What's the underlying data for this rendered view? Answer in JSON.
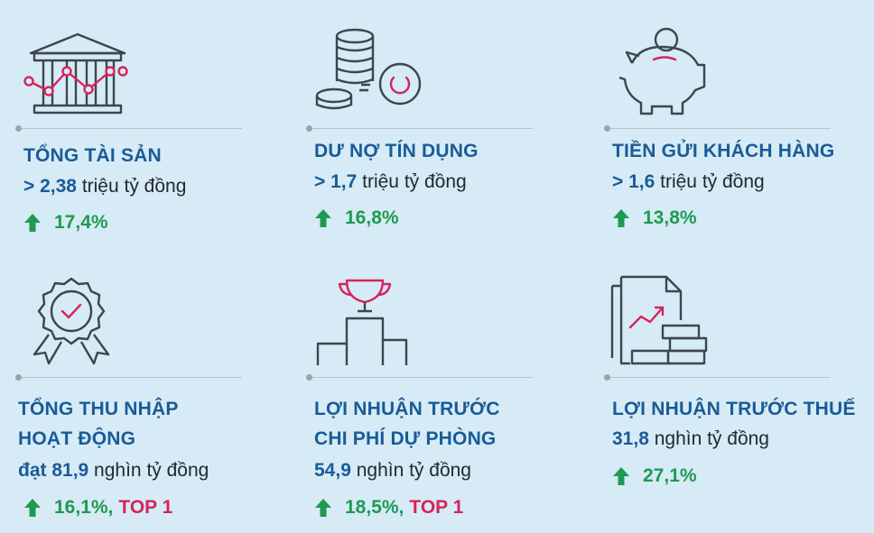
{
  "cards": [
    {
      "title": "TỔNG TÀI SẢN",
      "prefix": "> 2,38",
      "unit": " triệu tỷ đồng",
      "growth": "17,4%",
      "rank": ""
    },
    {
      "title": "DƯ NỢ TÍN DỤNG",
      "prefix": "> 1,7",
      "unit": " triệu tỷ đồng",
      "growth": "16,8%",
      "rank": ""
    },
    {
      "title": "TIỀN GỬI KHÁCH HÀNG",
      "prefix": "> 1,6",
      "unit": " triệu tỷ đồng",
      "growth": "13,8%",
      "rank": ""
    },
    {
      "title": "TỔNG THU NHẬP\nHOẠT ĐỘNG",
      "prefix": "đạt 81,9",
      "unit": " nghìn tỷ đồng",
      "growth": "16,1%,",
      "rank": "TOP 1"
    },
    {
      "title": "LỢI NHUẬN TRƯỚC\nCHI PHÍ DỰ PHÒNG",
      "prefix": "54,9",
      "unit": " nghìn tỷ đồng",
      "growth": "18,5%,",
      "rank": "TOP 1"
    },
    {
      "title": "LỢI NHUẬN TRƯỚC THUẾ",
      "prefix": "31,8",
      "unit": " nghìn tỷ đồng",
      "growth": "27,1%",
      "rank": ""
    }
  ],
  "colors": {
    "background": "#d6ebf5",
    "title": "#1a5b98",
    "growth": "#1f9a52",
    "accent": "#d6245c",
    "icon_stroke": "#3d4550"
  },
  "icons": [
    "bank-chart-icon",
    "coins-icon",
    "piggy-bank-icon",
    "award-badge-icon",
    "trophy-podium-icon",
    "report-growth-icon"
  ]
}
